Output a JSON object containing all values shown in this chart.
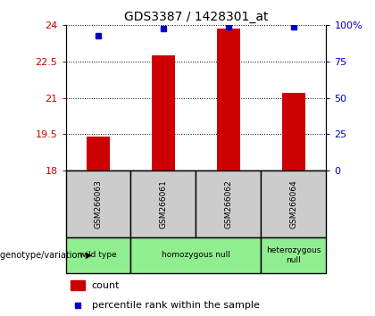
{
  "title": "GDS3387 / 1428301_at",
  "samples": [
    "GSM266063",
    "GSM266061",
    "GSM266062",
    "GSM266064"
  ],
  "bar_values": [
    19.4,
    22.75,
    23.85,
    21.2
  ],
  "percentile_values": [
    93,
    98,
    99,
    99
  ],
  "bar_bottom": 18,
  "ylim_left": [
    18,
    24
  ],
  "ylim_right": [
    0,
    100
  ],
  "yticks_left": [
    18,
    19.5,
    21,
    22.5,
    24
  ],
  "ytick_labels_left": [
    "18",
    "19.5",
    "21",
    "22.5",
    "24"
  ],
  "yticks_right": [
    0,
    25,
    50,
    75,
    100
  ],
  "ytick_labels_right": [
    "0",
    "25",
    "50",
    "75",
    "100%"
  ],
  "bar_color": "#cc0000",
  "dot_color": "#0000cc",
  "sample_bg_color": "#cccccc",
  "groups": [
    {
      "label": "wild type",
      "samples": [
        0
      ],
      "color": "#90ee90"
    },
    {
      "label": "homozygous null",
      "samples": [
        1,
        2
      ],
      "color": "#90ee90"
    },
    {
      "label": "heterozygous\nnull",
      "samples": [
        3
      ],
      "color": "#90ee90"
    }
  ],
  "group_label": "genotype/variation",
  "legend_count_label": "count",
  "legend_percentile_label": "percentile rank within the sample",
  "bar_width": 0.35,
  "left_tick_color": "#cc0000",
  "right_tick_color": "#0000cc"
}
